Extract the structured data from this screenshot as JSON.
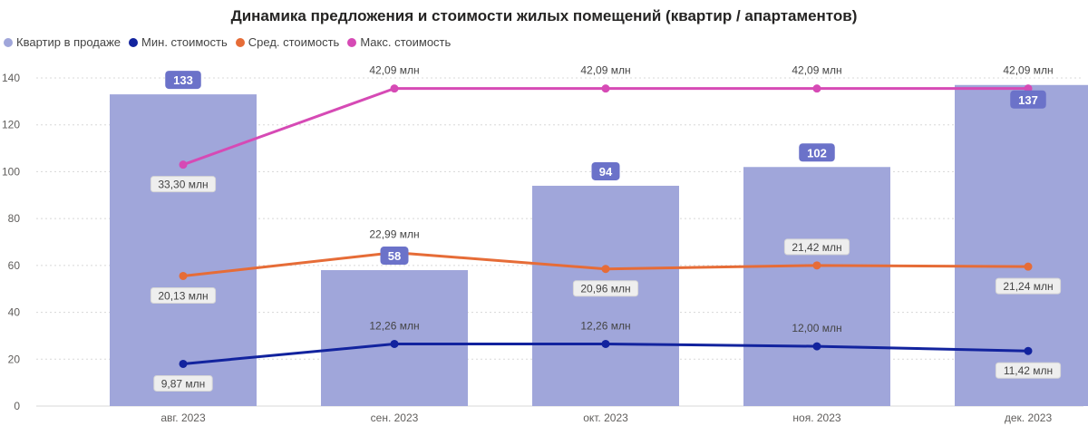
{
  "chart_data": {
    "type": "bar",
    "title": "Динамика предложения и стоимости жилых помещений (квартир / апартаментов)",
    "categories": [
      "авг. 2023",
      "сен. 2023",
      "окт. 2023",
      "ноя. 2023",
      "дек. 2023"
    ],
    "ylim": [
      0,
      140
    ],
    "yticks": [
      0,
      20,
      40,
      60,
      80,
      100,
      120,
      140
    ],
    "grid": true,
    "legend_position": "top-left",
    "bar_series": {
      "name": "Квартир в продаже",
      "color": "#a0a6da",
      "label_bg": "#6b72c9",
      "values": [
        133,
        58,
        94,
        102,
        137
      ]
    },
    "line_series": [
      {
        "name": "Мин. стоимость",
        "color": "#12239e",
        "values": [
          18,
          26.5,
          26.5,
          25.5,
          23.5
        ],
        "labels": [
          "9,87 млн",
          "12,26 млн",
          "12,26 млн",
          "12,00 млн",
          "11,42 млн"
        ],
        "label_pos": [
          "below",
          "above",
          "above",
          "above",
          "below"
        ],
        "label_boxed": [
          true,
          false,
          false,
          false,
          true
        ]
      },
      {
        "name": "Сред. стоимость",
        "color": "#e66c37",
        "values": [
          55.5,
          65.5,
          58.5,
          60,
          59.5
        ],
        "labels": [
          "20,13 млн",
          "22,99 млн",
          "20,96 млн",
          "21,42 млн",
          "21,24 млн"
        ],
        "label_pos": [
          "below",
          "above",
          "below",
          "above",
          "below"
        ],
        "label_boxed": [
          true,
          false,
          true,
          true,
          true
        ]
      },
      {
        "name": "Макс. стоимость",
        "color": "#d64ab5",
        "values": [
          103,
          135.5,
          135.5,
          135.5,
          135.5
        ],
        "labels": [
          "33,30 млн",
          "42,09 млн",
          "42,09 млн",
          "42,09 млн",
          "42,09 млн"
        ],
        "label_pos": [
          "below",
          "above",
          "above",
          "above",
          "above"
        ],
        "label_boxed": [
          true,
          false,
          false,
          false,
          false
        ]
      }
    ]
  }
}
